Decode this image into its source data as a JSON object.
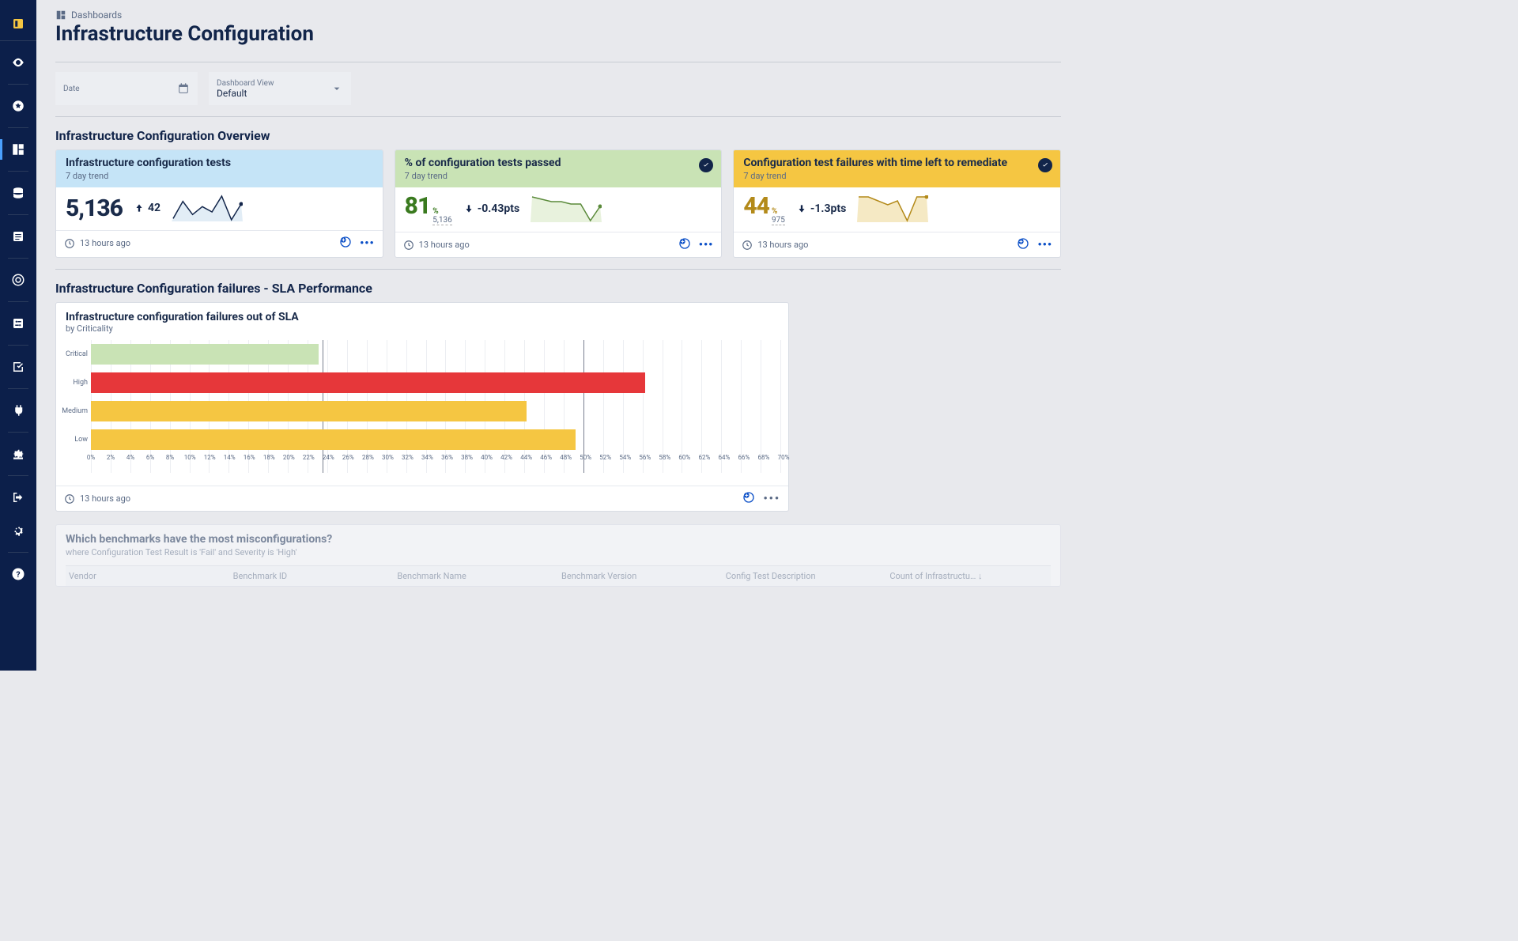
{
  "breadcrumb": {
    "label": "Dashboards"
  },
  "page": {
    "title": "Infrastructure Configuration"
  },
  "filters": {
    "date": {
      "label": "Date",
      "value": ""
    },
    "view": {
      "label": "Dashboard View",
      "value": "Default"
    }
  },
  "section_overview": {
    "title": "Infrastructure Configuration Overview"
  },
  "cards": {
    "tests": {
      "header_bg": "#c5e4f7",
      "title": "Infrastructure configuration tests",
      "subtitle": "7 day trend",
      "value": "5,136",
      "value_color": "#12254a",
      "delta_dir": "up",
      "delta_text": "42",
      "badge": false,
      "spark": {
        "points": [
          5,
          18,
          8,
          14,
          10,
          22,
          4,
          16
        ],
        "stroke": "#12254a",
        "fill": "#e2edf6"
      },
      "footer_time": "13 hours ago"
    },
    "passed": {
      "header_bg": "#c9e3b5",
      "title": "% of configuration tests passed",
      "subtitle": "7 day trend",
      "value": "81",
      "value_color": "#3a7a1f",
      "denom_top": "%",
      "denom_bottom": "5,136",
      "delta_dir": "down",
      "delta_text": "-0.43pts",
      "badge": true,
      "spark": {
        "points": [
          14,
          13,
          12,
          12,
          11,
          11,
          4,
          10
        ],
        "stroke": "#5a8a3a",
        "fill": "#e8f2dd"
      },
      "footer_time": "13 hours ago"
    },
    "remediate": {
      "header_bg": "#f5c642",
      "title": "Configuration test failures with time left to remediate",
      "subtitle": "7 day trend",
      "value": "44",
      "value_color": "#b38a1a",
      "denom_top": "%",
      "denom_bottom": "975",
      "delta_dir": "down",
      "delta_text": "-1.3pts",
      "badge": true,
      "spark": {
        "points": [
          12,
          12,
          11,
          10,
          11,
          6,
          12,
          12
        ],
        "stroke": "#b38a1a",
        "fill": "#f5e9c4"
      },
      "footer_time": "13 hours ago"
    }
  },
  "section_sla": {
    "title": "Infrastructure Configuration failures - SLA Performance"
  },
  "sla_chart": {
    "title": "Infrastructure configuration failures out of SLA",
    "subtitle": "by Criticality",
    "x_max": 70,
    "x_ticks": [
      0,
      2,
      4,
      6,
      8,
      10,
      12,
      14,
      16,
      18,
      20,
      22,
      24,
      26,
      28,
      30,
      32,
      34,
      36,
      38,
      40,
      42,
      44,
      46,
      48,
      50,
      52,
      54,
      56,
      58,
      60,
      62,
      64,
      66,
      68,
      70
    ],
    "ref_line": 50,
    "ref_line2": 23.5,
    "bars": [
      {
        "label": "Critical",
        "value": 23,
        "color": "#c9e3b5"
      },
      {
        "label": "High",
        "value": 56,
        "color": "#e6373a"
      },
      {
        "label": "Medium",
        "value": 44,
        "color": "#f5c642"
      },
      {
        "label": "Low",
        "value": 49,
        "color": "#f5c642"
      }
    ],
    "footer_time": "13 hours ago"
  },
  "benchmarks": {
    "title": "Which benchmarks have the most misconfigurations?",
    "subtitle": "where Configuration Test Result is 'Fail' and Severity is 'High'",
    "columns": [
      "Vendor",
      "Benchmark ID",
      "Benchmark Name",
      "Benchmark Version",
      "Config Test Description",
      "Count of Infrastructu…  ↓"
    ]
  }
}
